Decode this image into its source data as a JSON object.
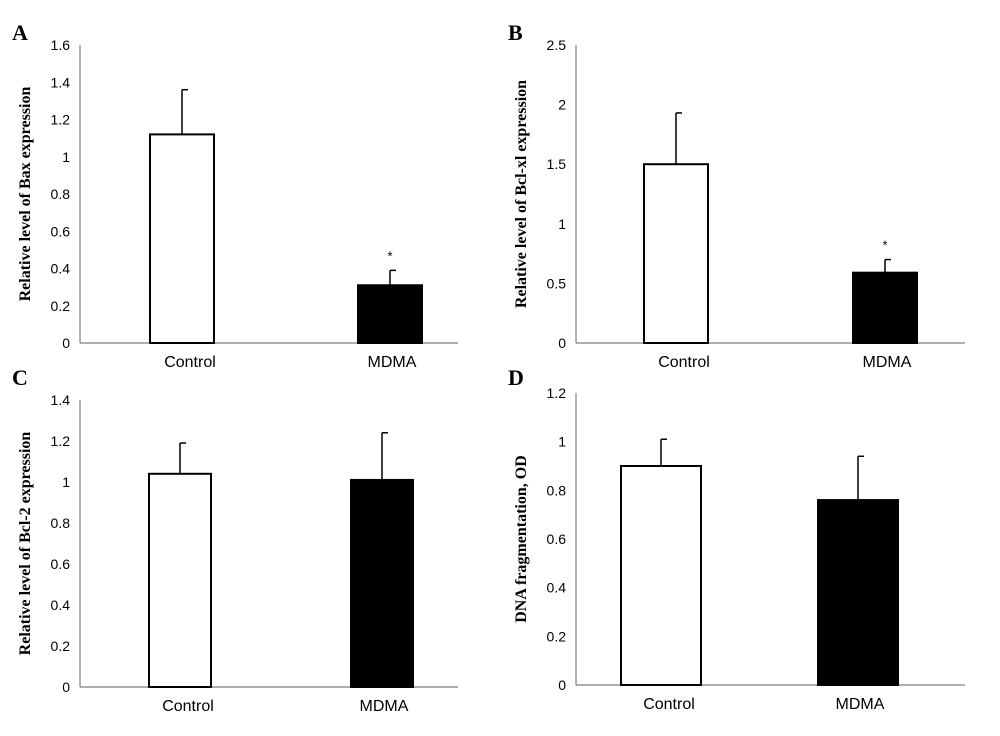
{
  "chart_data": [
    {
      "panel": "A",
      "type": "bar",
      "categories": [
        "Control",
        "MDMA"
      ],
      "values": [
        1.12,
        0.31
      ],
      "errors": [
        0.24,
        0.08
      ],
      "significance": [
        "",
        "*"
      ],
      "ylabel": "Relative level of Bax expression",
      "ylim": [
        0,
        1.6
      ],
      "ticks": [
        "0",
        "0.2",
        "0.4",
        "0.6",
        "0.8",
        "1",
        "1.2",
        "1.4",
        "1.6"
      ],
      "fills": [
        "#ffffff",
        "#000000"
      ],
      "grid": false
    },
    {
      "panel": "B",
      "type": "bar",
      "categories": [
        "Control",
        "MDMA"
      ],
      "values": [
        1.5,
        0.59
      ],
      "errors": [
        0.43,
        0.11
      ],
      "significance": [
        "",
        "*"
      ],
      "ylabel": "Relative level of Bcl-xl expression",
      "ylim": [
        0,
        2.5
      ],
      "ticks": [
        "0",
        "0.5",
        "1",
        "1.5",
        "2",
        "2.5"
      ],
      "fills": [
        "#ffffff",
        "#000000"
      ],
      "grid": false
    },
    {
      "panel": "C",
      "type": "bar",
      "categories": [
        "Control",
        "MDMA"
      ],
      "values": [
        1.04,
        1.01
      ],
      "errors": [
        0.15,
        0.23
      ],
      "significance": [
        "",
        ""
      ],
      "ylabel": "Relative level of Bcl-2 expression",
      "ylim": [
        0,
        1.4
      ],
      "ticks": [
        "0",
        "0.2",
        "0.4",
        "0.6",
        "0.8",
        "1",
        "1.2",
        "1.4"
      ],
      "fills": [
        "#ffffff",
        "#000000"
      ],
      "grid": false
    },
    {
      "panel": "D",
      "type": "bar",
      "categories": [
        "Control",
        "MDMA"
      ],
      "values": [
        0.9,
        0.76
      ],
      "errors": [
        0.11,
        0.18
      ],
      "significance": [
        "",
        ""
      ],
      "ylabel": "DNA fragmentation, OD",
      "ylim": [
        0,
        1.2
      ],
      "ticks": [
        "0",
        "0.2",
        "0.4",
        "0.6",
        "0.8",
        "1",
        "1.2"
      ],
      "fills": [
        "#ffffff",
        "#000000"
      ],
      "grid": false
    }
  ]
}
